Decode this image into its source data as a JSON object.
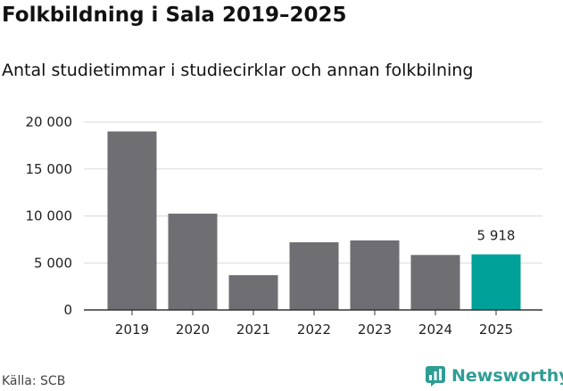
{
  "header": {
    "title": "Folkbildning i Sala 2019–2025",
    "subtitle": "Antal studietimmar i studiecirklar och annan folkbilning"
  },
  "footer": {
    "source": "Källa: SCB",
    "brand_name": "Newsworthy",
    "brand_icon": "newsworthy-logo-icon"
  },
  "colors": {
    "bar_default": "#6f6e72",
    "bar_highlight": "#00a198",
    "grid": "#d9d9d9",
    "axis": "#333333",
    "brand": "#2e9d94"
  },
  "chart_data": {
    "type": "bar",
    "categories": [
      "2019",
      "2020",
      "2021",
      "2022",
      "2023",
      "2024",
      "2025"
    ],
    "values": [
      19000,
      10250,
      3700,
      7200,
      7400,
      5850,
      5918
    ],
    "highlight_index": 6,
    "data_labels": [
      {
        "index": 6,
        "text": "5 918"
      }
    ],
    "yticks": [
      {
        "value": 0,
        "label": "0"
      },
      {
        "value": 5000,
        "label": "5 000"
      },
      {
        "value": 10000,
        "label": "10 000"
      },
      {
        "value": 15000,
        "label": "15 000"
      },
      {
        "value": 20000,
        "label": "20 000"
      }
    ],
    "ylim": [
      0,
      20000
    ],
    "grid": true,
    "legend": "none",
    "xlabel": "",
    "ylabel": ""
  }
}
